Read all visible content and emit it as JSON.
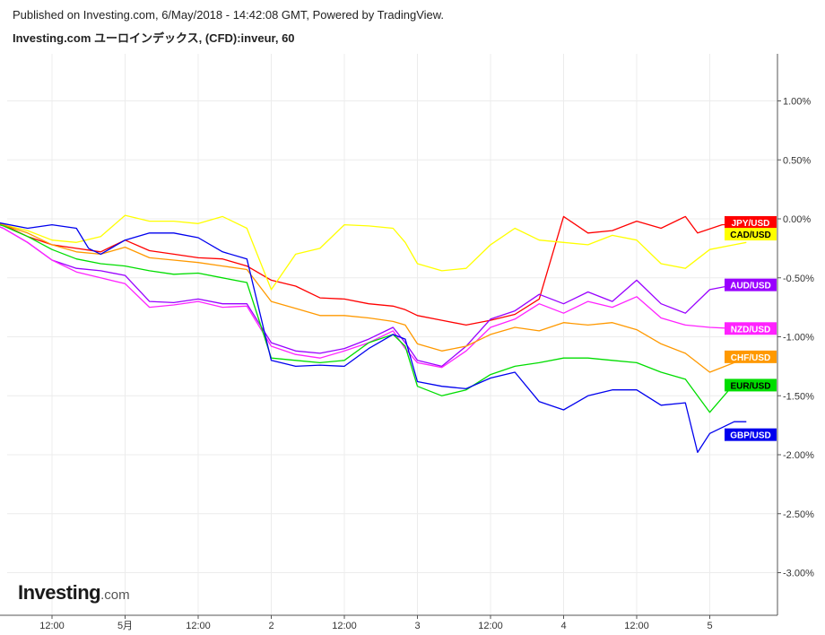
{
  "header": {
    "published": "Published on Investing.com, 6/May/2018 - 14:42:08 GMT, Powered by TradingView.",
    "title": "Investing.com ユーロインデックス, (CFD):inveur, 60"
  },
  "logo": {
    "main": "Investing",
    "suffix": ".com"
  },
  "chart_data": {
    "type": "line",
    "title": "Investing.com ユーロインデックス, (CFD):inveur, 60",
    "x_ticks": [
      {
        "t": 12,
        "label": "12:00"
      },
      {
        "t": 24,
        "label": "5月"
      },
      {
        "t": 36,
        "label": "12:00"
      },
      {
        "t": 48,
        "label": "2"
      },
      {
        "t": 60,
        "label": "12:00"
      },
      {
        "t": 72,
        "label": "3"
      },
      {
        "t": 84,
        "label": "12:00"
      },
      {
        "t": 96,
        "label": "4"
      },
      {
        "t": 108,
        "label": "12:00"
      },
      {
        "t": 120,
        "label": "5"
      }
    ],
    "x_domain": [
      0,
      126
    ],
    "ylim": [
      -3.3,
      1.45
    ],
    "y_ticks": [
      1.0,
      0.5,
      0.0,
      -0.5,
      -1.0,
      -1.5,
      -2.0,
      -2.5,
      -3.0
    ],
    "y_tick_labels": [
      "1.00%",
      "0.50%",
      "0.00%",
      "-0.50%",
      "-1.00%",
      "-1.50%",
      "-2.00%",
      "-2.50%",
      "-3.00%"
    ],
    "grid": true,
    "series": [
      {
        "name": "JPY/USD",
        "color": "#ff0000",
        "text_color": "#ffffff",
        "label_value": -0.03,
        "points": [
          [
            0,
            0
          ],
          [
            4,
            -0.05
          ],
          [
            8,
            -0.15
          ],
          [
            12,
            -0.22
          ],
          [
            16,
            -0.25
          ],
          [
            20,
            -0.28
          ],
          [
            24,
            -0.18
          ],
          [
            28,
            -0.27
          ],
          [
            32,
            -0.3
          ],
          [
            36,
            -0.33
          ],
          [
            40,
            -0.34
          ],
          [
            44,
            -0.4
          ],
          [
            48,
            -0.52
          ],
          [
            52,
            -0.57
          ],
          [
            56,
            -0.67
          ],
          [
            60,
            -0.68
          ],
          [
            64,
            -0.72
          ],
          [
            68,
            -0.74
          ],
          [
            70,
            -0.77
          ],
          [
            72,
            -0.82
          ],
          [
            76,
            -0.86
          ],
          [
            80,
            -0.9
          ],
          [
            84,
            -0.86
          ],
          [
            88,
            -0.81
          ],
          [
            92,
            -0.68
          ],
          [
            96,
            0.02
          ],
          [
            100,
            -0.12
          ],
          [
            104,
            -0.1
          ],
          [
            108,
            -0.02
          ],
          [
            112,
            -0.08
          ],
          [
            116,
            0.02
          ],
          [
            118,
            -0.12
          ],
          [
            122,
            -0.05
          ],
          [
            126,
            -0.04
          ]
        ]
      },
      {
        "name": "CAD/USD",
        "color": "#ffff00",
        "text_color": "#000000",
        "label_value": -0.13,
        "points": [
          [
            0,
            0
          ],
          [
            4,
            -0.05
          ],
          [
            8,
            -0.1
          ],
          [
            12,
            -0.18
          ],
          [
            16,
            -0.2
          ],
          [
            20,
            -0.15
          ],
          [
            24,
            0.03
          ],
          [
            28,
            -0.02
          ],
          [
            32,
            -0.02
          ],
          [
            36,
            -0.04
          ],
          [
            40,
            0.02
          ],
          [
            44,
            -0.08
          ],
          [
            48,
            -0.6
          ],
          [
            52,
            -0.3
          ],
          [
            56,
            -0.25
          ],
          [
            60,
            -0.05
          ],
          [
            64,
            -0.06
          ],
          [
            68,
            -0.08
          ],
          [
            70,
            -0.2
          ],
          [
            72,
            -0.38
          ],
          [
            76,
            -0.44
          ],
          [
            80,
            -0.42
          ],
          [
            84,
            -0.22
          ],
          [
            88,
            -0.08
          ],
          [
            92,
            -0.18
          ],
          [
            96,
            -0.2
          ],
          [
            100,
            -0.22
          ],
          [
            104,
            -0.14
          ],
          [
            108,
            -0.18
          ],
          [
            112,
            -0.38
          ],
          [
            116,
            -0.42
          ],
          [
            120,
            -0.26
          ],
          [
            124,
            -0.22
          ],
          [
            126,
            -0.2
          ]
        ]
      },
      {
        "name": "AUD/USD",
        "color": "#9900ff",
        "text_color": "#ffffff",
        "label_value": -0.56,
        "points": [
          [
            0,
            0
          ],
          [
            4,
            -0.08
          ],
          [
            8,
            -0.2
          ],
          [
            12,
            -0.35
          ],
          [
            16,
            -0.42
          ],
          [
            20,
            -0.44
          ],
          [
            24,
            -0.48
          ],
          [
            28,
            -0.7
          ],
          [
            32,
            -0.71
          ],
          [
            36,
            -0.68
          ],
          [
            40,
            -0.72
          ],
          [
            44,
            -0.72
          ],
          [
            48,
            -1.05
          ],
          [
            52,
            -1.12
          ],
          [
            56,
            -1.14
          ],
          [
            60,
            -1.1
          ],
          [
            64,
            -1.02
          ],
          [
            68,
            -0.92
          ],
          [
            70,
            -1.05
          ],
          [
            72,
            -1.2
          ],
          [
            76,
            -1.25
          ],
          [
            80,
            -1.08
          ],
          [
            84,
            -0.85
          ],
          [
            88,
            -0.78
          ],
          [
            92,
            -0.64
          ],
          [
            96,
            -0.72
          ],
          [
            100,
            -0.62
          ],
          [
            104,
            -0.7
          ],
          [
            108,
            -0.52
          ],
          [
            112,
            -0.72
          ],
          [
            116,
            -0.8
          ],
          [
            120,
            -0.6
          ],
          [
            124,
            -0.56
          ],
          [
            126,
            -0.55
          ]
        ]
      },
      {
        "name": "NZD/USD",
        "color": "#ff22ff",
        "text_color": "#ffffff",
        "label_value": -0.93,
        "points": [
          [
            0,
            0
          ],
          [
            4,
            -0.08
          ],
          [
            8,
            -0.2
          ],
          [
            12,
            -0.35
          ],
          [
            16,
            -0.45
          ],
          [
            20,
            -0.5
          ],
          [
            24,
            -0.55
          ],
          [
            28,
            -0.75
          ],
          [
            32,
            -0.73
          ],
          [
            36,
            -0.7
          ],
          [
            40,
            -0.75
          ],
          [
            44,
            -0.74
          ],
          [
            48,
            -1.08
          ],
          [
            52,
            -1.15
          ],
          [
            56,
            -1.18
          ],
          [
            60,
            -1.12
          ],
          [
            64,
            -1.05
          ],
          [
            68,
            -0.95
          ],
          [
            70,
            -1.1
          ],
          [
            72,
            -1.22
          ],
          [
            76,
            -1.26
          ],
          [
            80,
            -1.12
          ],
          [
            84,
            -0.92
          ],
          [
            88,
            -0.85
          ],
          [
            92,
            -0.72
          ],
          [
            96,
            -0.8
          ],
          [
            100,
            -0.7
          ],
          [
            104,
            -0.75
          ],
          [
            108,
            -0.66
          ],
          [
            112,
            -0.84
          ],
          [
            116,
            -0.9
          ],
          [
            120,
            -0.92
          ],
          [
            124,
            -0.93
          ],
          [
            126,
            -0.93
          ]
        ]
      },
      {
        "name": "CHF/USD",
        "color": "#ff9900",
        "text_color": "#ffffff",
        "label_value": -1.17,
        "points": [
          [
            0,
            0
          ],
          [
            4,
            -0.05
          ],
          [
            8,
            -0.12
          ],
          [
            12,
            -0.22
          ],
          [
            16,
            -0.28
          ],
          [
            20,
            -0.3
          ],
          [
            24,
            -0.24
          ],
          [
            28,
            -0.33
          ],
          [
            32,
            -0.35
          ],
          [
            36,
            -0.37
          ],
          [
            40,
            -0.4
          ],
          [
            44,
            -0.43
          ],
          [
            48,
            -0.7
          ],
          [
            52,
            -0.76
          ],
          [
            56,
            -0.82
          ],
          [
            60,
            -0.82
          ],
          [
            64,
            -0.84
          ],
          [
            68,
            -0.87
          ],
          [
            70,
            -0.9
          ],
          [
            72,
            -1.06
          ],
          [
            76,
            -1.12
          ],
          [
            80,
            -1.08
          ],
          [
            84,
            -0.98
          ],
          [
            88,
            -0.92
          ],
          [
            92,
            -0.95
          ],
          [
            96,
            -0.88
          ],
          [
            100,
            -0.9
          ],
          [
            104,
            -0.88
          ],
          [
            108,
            -0.94
          ],
          [
            112,
            -1.06
          ],
          [
            116,
            -1.14
          ],
          [
            120,
            -1.3
          ],
          [
            124,
            -1.22
          ],
          [
            126,
            -1.2
          ]
        ]
      },
      {
        "name": "EUR/USD",
        "color": "#00dd00",
        "text_color": "#000000",
        "label_value": -1.41,
        "points": [
          [
            0,
            0
          ],
          [
            4,
            -0.06
          ],
          [
            8,
            -0.15
          ],
          [
            12,
            -0.26
          ],
          [
            16,
            -0.34
          ],
          [
            20,
            -0.38
          ],
          [
            24,
            -0.4
          ],
          [
            28,
            -0.44
          ],
          [
            32,
            -0.47
          ],
          [
            36,
            -0.46
          ],
          [
            40,
            -0.5
          ],
          [
            44,
            -0.54
          ],
          [
            48,
            -1.18
          ],
          [
            52,
            -1.2
          ],
          [
            56,
            -1.22
          ],
          [
            60,
            -1.2
          ],
          [
            64,
            -1.05
          ],
          [
            68,
            -0.98
          ],
          [
            70,
            -1.08
          ],
          [
            72,
            -1.42
          ],
          [
            76,
            -1.5
          ],
          [
            80,
            -1.45
          ],
          [
            84,
            -1.32
          ],
          [
            88,
            -1.25
          ],
          [
            92,
            -1.22
          ],
          [
            96,
            -1.18
          ],
          [
            100,
            -1.18
          ],
          [
            104,
            -1.2
          ],
          [
            108,
            -1.22
          ],
          [
            112,
            -1.3
          ],
          [
            116,
            -1.36
          ],
          [
            120,
            -1.64
          ],
          [
            124,
            -1.4
          ],
          [
            126,
            -1.38
          ]
        ]
      },
      {
        "name": "GBP/USD",
        "color": "#0000ee",
        "text_color": "#ffffff",
        "label_value": -1.83,
        "points": [
          [
            0,
            0
          ],
          [
            4,
            -0.04
          ],
          [
            8,
            -0.08
          ],
          [
            12,
            -0.05
          ],
          [
            16,
            -0.08
          ],
          [
            18,
            -0.25
          ],
          [
            20,
            -0.3
          ],
          [
            24,
            -0.18
          ],
          [
            28,
            -0.12
          ],
          [
            32,
            -0.12
          ],
          [
            36,
            -0.16
          ],
          [
            40,
            -0.28
          ],
          [
            44,
            -0.34
          ],
          [
            48,
            -1.2
          ],
          [
            52,
            -1.25
          ],
          [
            56,
            -1.24
          ],
          [
            60,
            -1.25
          ],
          [
            64,
            -1.1
          ],
          [
            68,
            -0.98
          ],
          [
            70,
            -1.02
          ],
          [
            72,
            -1.38
          ],
          [
            76,
            -1.42
          ],
          [
            80,
            -1.44
          ],
          [
            84,
            -1.35
          ],
          [
            88,
            -1.3
          ],
          [
            92,
            -1.55
          ],
          [
            96,
            -1.62
          ],
          [
            100,
            -1.5
          ],
          [
            104,
            -1.45
          ],
          [
            108,
            -1.45
          ],
          [
            112,
            -1.58
          ],
          [
            116,
            -1.56
          ],
          [
            118,
            -1.98
          ],
          [
            120,
            -1.82
          ],
          [
            124,
            -1.72
          ],
          [
            126,
            -1.72
          ]
        ]
      }
    ]
  }
}
